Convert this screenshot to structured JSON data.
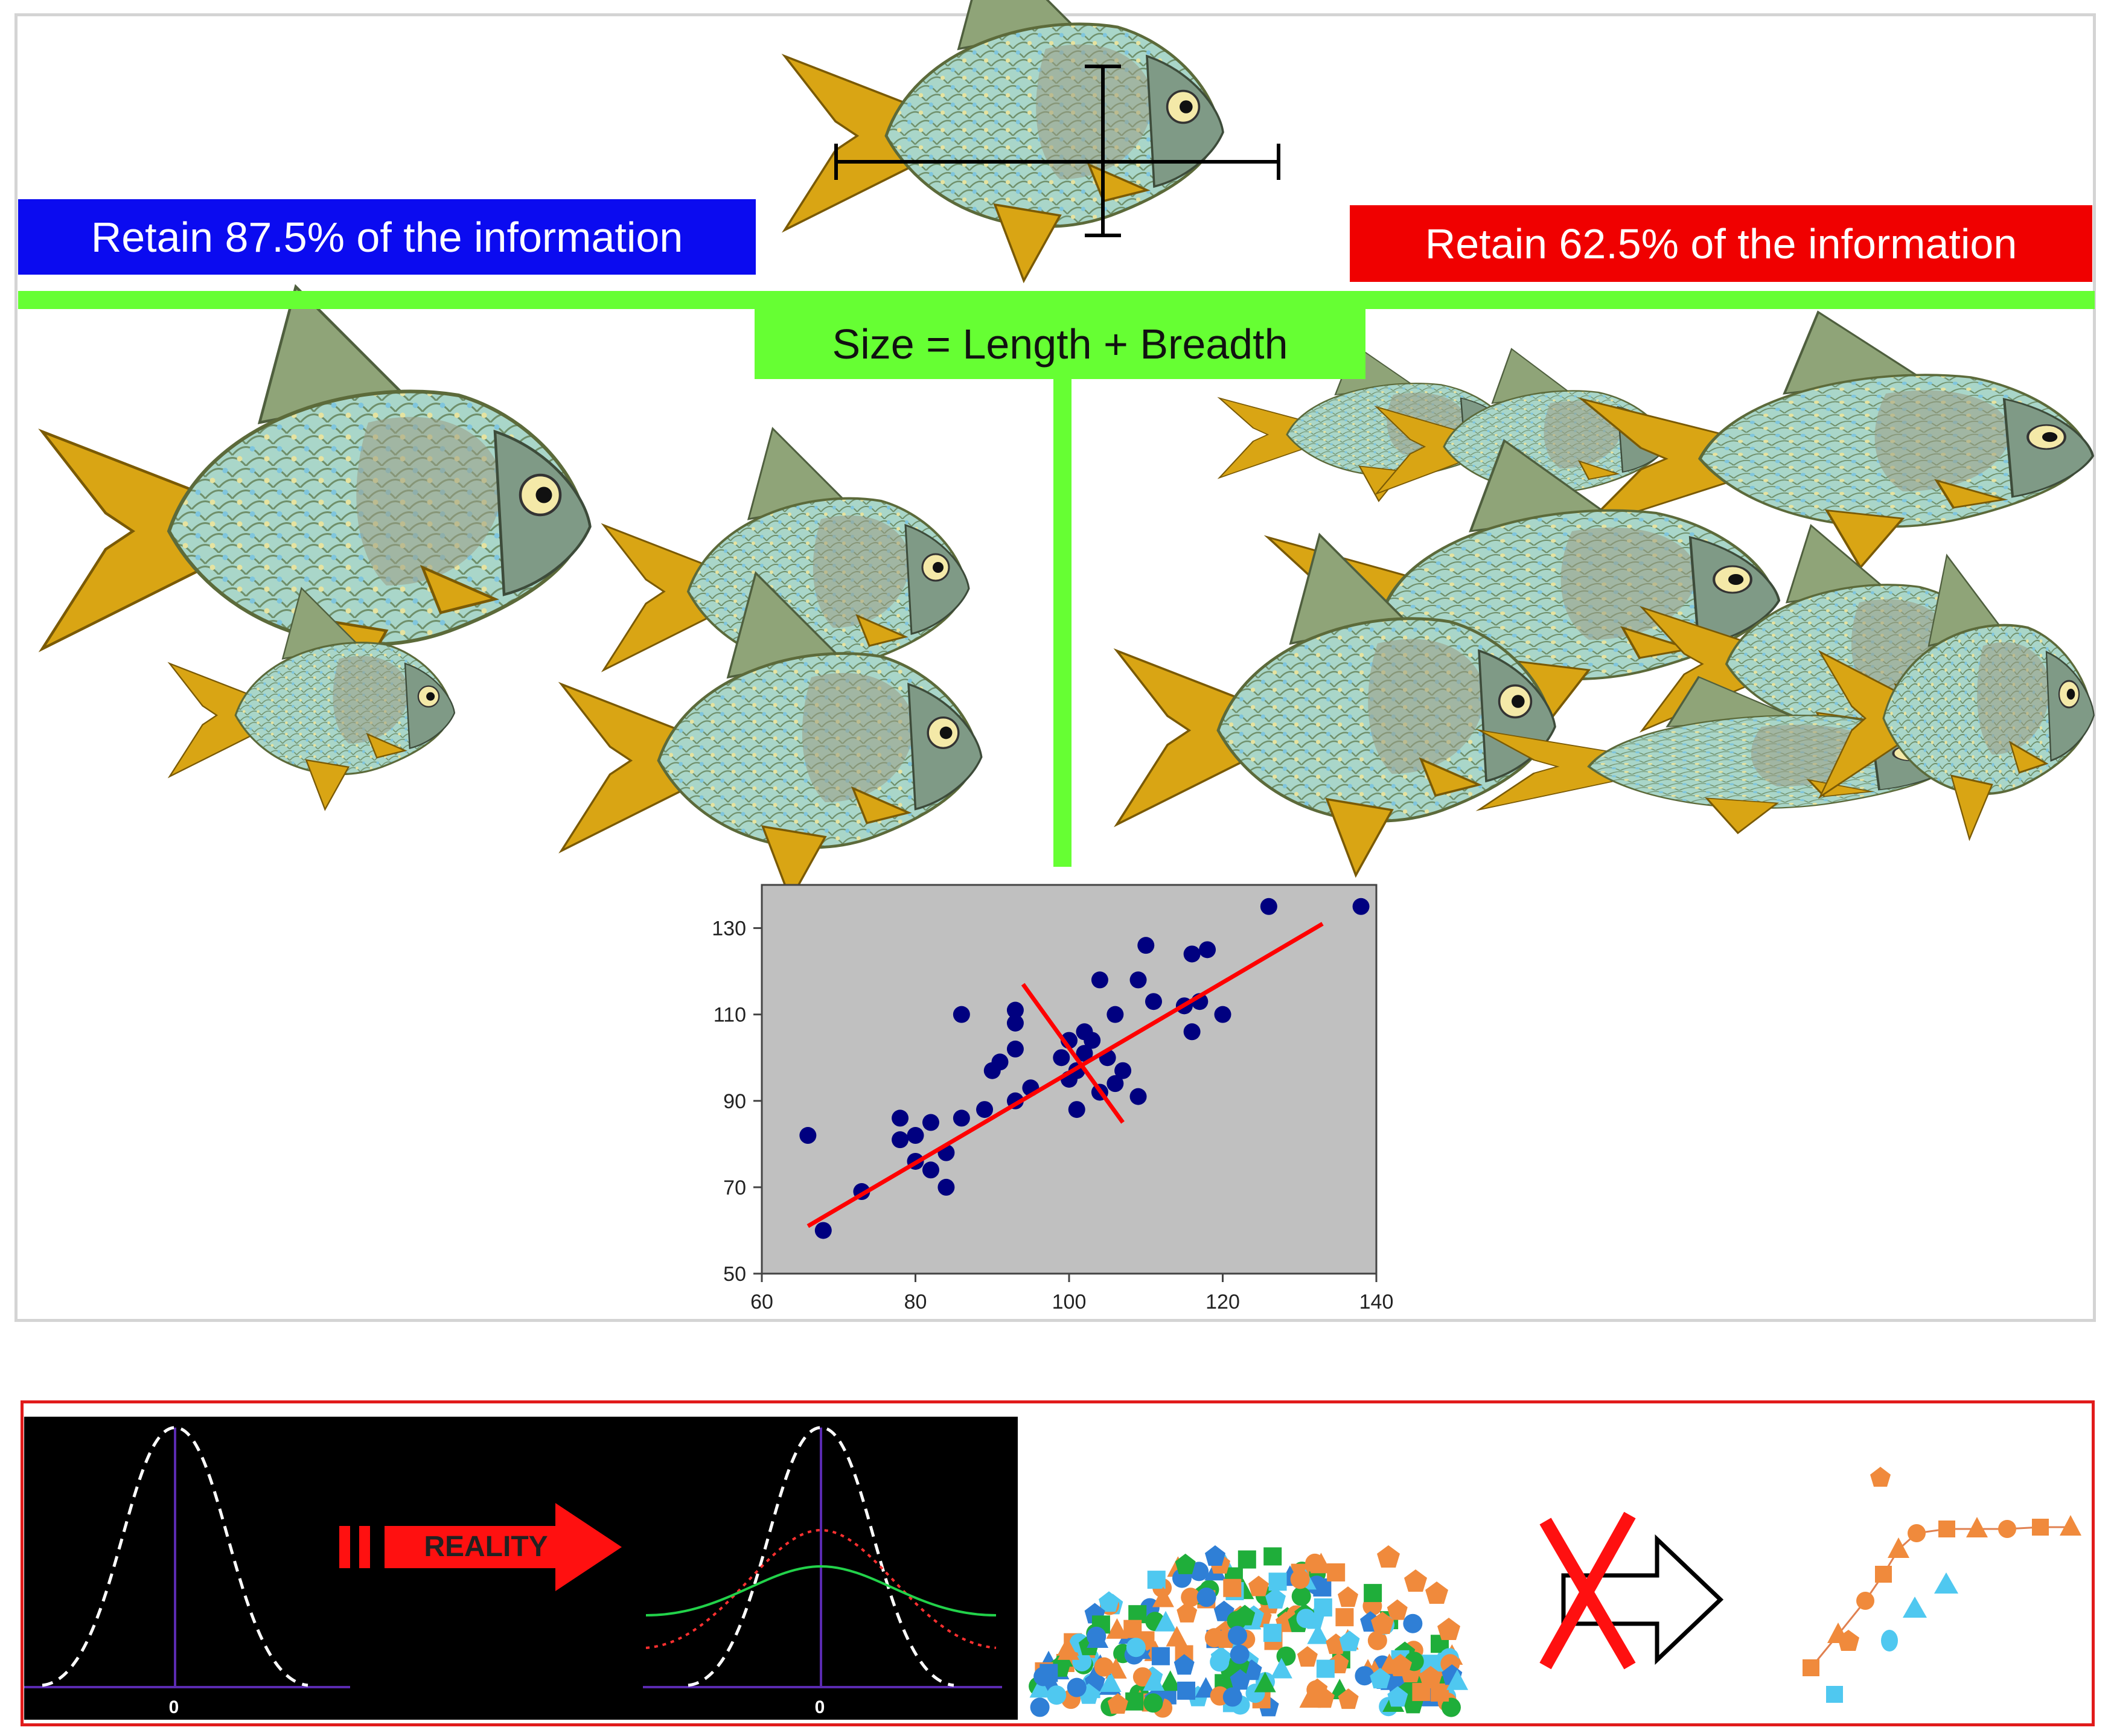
{
  "banners": {
    "left": "Retain 87.5% of the information",
    "right": "Retain 62.5% of the information",
    "center": "Size = Length + Breadth"
  },
  "colors": {
    "left_banner": "#0b0bf0",
    "right_banner": "#f00000",
    "green": "#66ff33",
    "point": "#000080",
    "fit_line": "#ff0000",
    "plot_bg": "#c0c0c0",
    "fish_body": "#9fcfc6",
    "fish_fin": "#d9a514",
    "scatter_orange": "#f08a3c",
    "scatter_green": "#1fae3a",
    "scatter_blue": "#2f7fd6",
    "scatter_cyan": "#4fc8f0"
  },
  "icons": [
    "fish-icon",
    "measure-cross-icon",
    "reality-arrow-icon",
    "crossed-arrow-icon"
  ],
  "chart_data": {
    "type": "scatter",
    "title": "",
    "xlabel": "",
    "ylabel": "",
    "xlim": [
      60,
      140
    ],
    "ylim": [
      50,
      140
    ],
    "xticks": [
      "60",
      "80",
      "100",
      "120",
      "140"
    ],
    "yticks": [
      "50",
      "70",
      "90",
      "110",
      "130"
    ],
    "points": [
      [
        66,
        82
      ],
      [
        68,
        60
      ],
      [
        73,
        69
      ],
      [
        78,
        86
      ],
      [
        78,
        81
      ],
      [
        80,
        76
      ],
      [
        80,
        82
      ],
      [
        82,
        85
      ],
      [
        82,
        74
      ],
      [
        84,
        78
      ],
      [
        84,
        70
      ],
      [
        86,
        110
      ],
      [
        86,
        86
      ],
      [
        89,
        88
      ],
      [
        90,
        97
      ],
      [
        91,
        99
      ],
      [
        93,
        111
      ],
      [
        93,
        108
      ],
      [
        93,
        90
      ],
      [
        93,
        102
      ],
      [
        99,
        100
      ],
      [
        100,
        95
      ],
      [
        101,
        97
      ],
      [
        101,
        88
      ],
      [
        102,
        106
      ],
      [
        102,
        101
      ],
      [
        103,
        104
      ],
      [
        104,
        92
      ],
      [
        104,
        118
      ],
      [
        105,
        100
      ],
      [
        106,
        110
      ],
      [
        106,
        94
      ],
      [
        107,
        97
      ],
      [
        109,
        91
      ],
      [
        109,
        118
      ],
      [
        110,
        126
      ],
      [
        111,
        113
      ],
      [
        115,
        112
      ],
      [
        116,
        124
      ],
      [
        116,
        106
      ],
      [
        117,
        113
      ],
      [
        118,
        125
      ],
      [
        120,
        110
      ],
      [
        126,
        135
      ],
      [
        138,
        135
      ],
      [
        100,
        104
      ],
      [
        95,
        93
      ]
    ],
    "fit_line": [
      [
        66,
        61
      ],
      [
        133,
        131
      ]
    ],
    "perp_line": [
      [
        94,
        117
      ],
      [
        107,
        85
      ]
    ]
  },
  "bottom": {
    "reality_label": "REALITY",
    "axis_zero_left": "0",
    "axis_zero_right": "0"
  }
}
